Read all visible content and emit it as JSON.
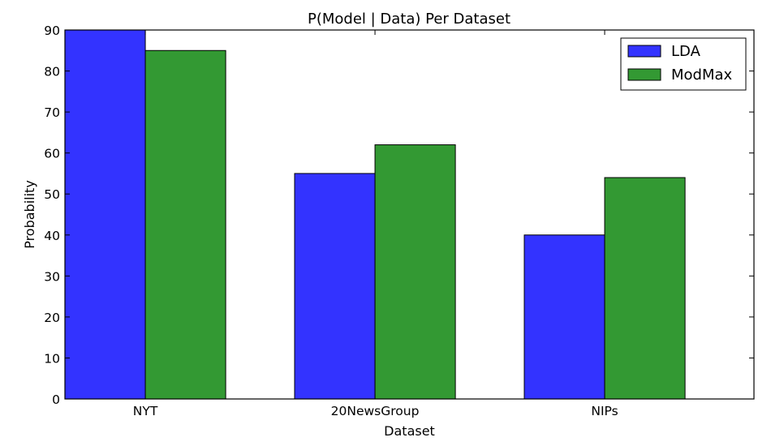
{
  "chart_data": {
    "type": "bar",
    "title": "P(Model | Data) Per Dataset",
    "xlabel": "Dataset",
    "ylabel": "Probability",
    "categories": [
      "NYT",
      "20NewsGroup",
      "NIPs"
    ],
    "series": [
      {
        "name": "LDA",
        "values": [
          90,
          55,
          40
        ],
        "color": "#3333ff"
      },
      {
        "name": "ModMax",
        "values": [
          85,
          62,
          54
        ],
        "color": "#339933"
      }
    ],
    "ylim": [
      0,
      90
    ],
    "yticks": [
      0,
      10,
      20,
      30,
      40,
      50,
      60,
      70,
      80,
      90
    ],
    "grid": false,
    "legend_position": "upper right"
  }
}
